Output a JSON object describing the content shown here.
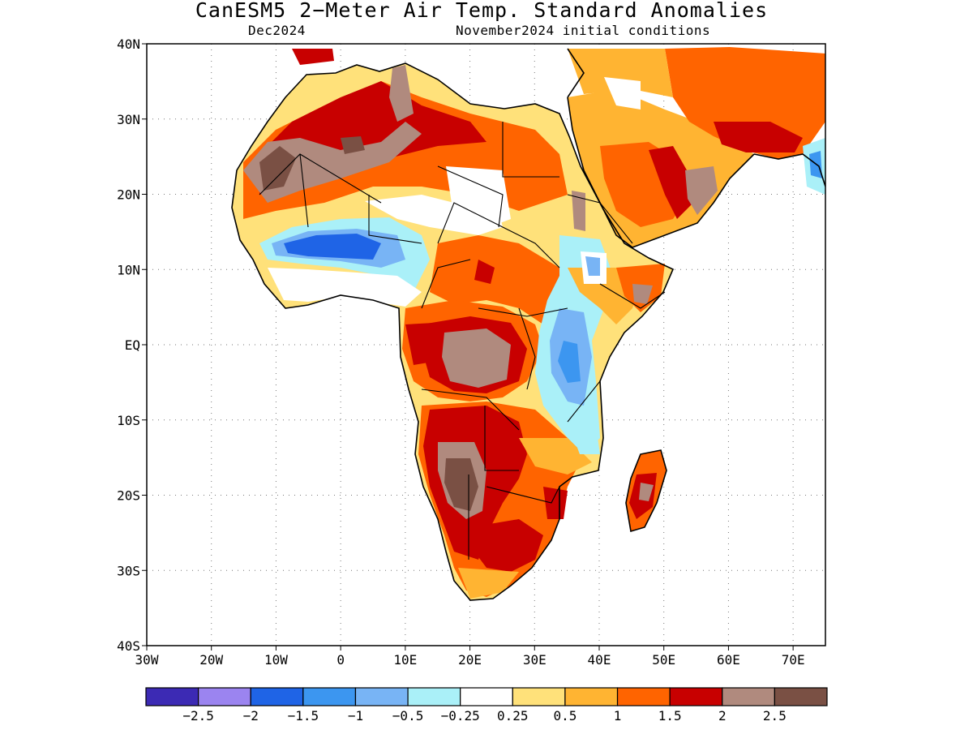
{
  "header": {
    "title": "CanESM5 2−Meter Air Temp. Standard Anomalies",
    "valid_month": "Dec2024",
    "init_conditions": "November2024 initial conditions"
  },
  "map": {
    "region": "Africa",
    "projection": "lat-lon",
    "lon_range": [
      -30,
      75
    ],
    "lat_range": [
      -40,
      40
    ],
    "lon_ticks": [
      {
        "value": -30,
        "label": "30W"
      },
      {
        "value": -20,
        "label": "20W"
      },
      {
        "value": -10,
        "label": "10W"
      },
      {
        "value": 0,
        "label": "0"
      },
      {
        "value": 10,
        "label": "10E"
      },
      {
        "value": 20,
        "label": "20E"
      },
      {
        "value": 30,
        "label": "30E"
      },
      {
        "value": 40,
        "label": "40E"
      },
      {
        "value": 50,
        "label": "50E"
      },
      {
        "value": 60,
        "label": "60E"
      },
      {
        "value": 70,
        "label": "70E"
      }
    ],
    "lat_ticks": [
      {
        "value": 40,
        "label": "40N"
      },
      {
        "value": 30,
        "label": "30N"
      },
      {
        "value": 20,
        "label": "20N"
      },
      {
        "value": 10,
        "label": "10N"
      },
      {
        "value": 0,
        "label": "EQ"
      },
      {
        "value": -10,
        "label": "10S"
      },
      {
        "value": -20,
        "label": "20S"
      },
      {
        "value": -30,
        "label": "30S"
      },
      {
        "value": -40,
        "label": "40S"
      }
    ],
    "grid": "dotted",
    "land_color": "#ffffff",
    "ocean_color": "#ffffff",
    "outline_color": "#000000"
  },
  "colorbar": {
    "colors": [
      "#3c2ab4",
      "#9b84f0",
      "#1f64e6",
      "#3c96f0",
      "#78b4f5",
      "#aaf0f8",
      "#ffffff",
      "#ffe17a",
      "#ffb432",
      "#ff6400",
      "#c80000",
      "#b08a7e",
      "#7a5044"
    ],
    "labels": [
      "−2.5",
      "−2",
      "−1.5",
      "−1",
      "−0.5",
      "−0.25",
      "0.25",
      "0.5",
      "1",
      "1.5",
      "2",
      "2.5"
    ]
  }
}
